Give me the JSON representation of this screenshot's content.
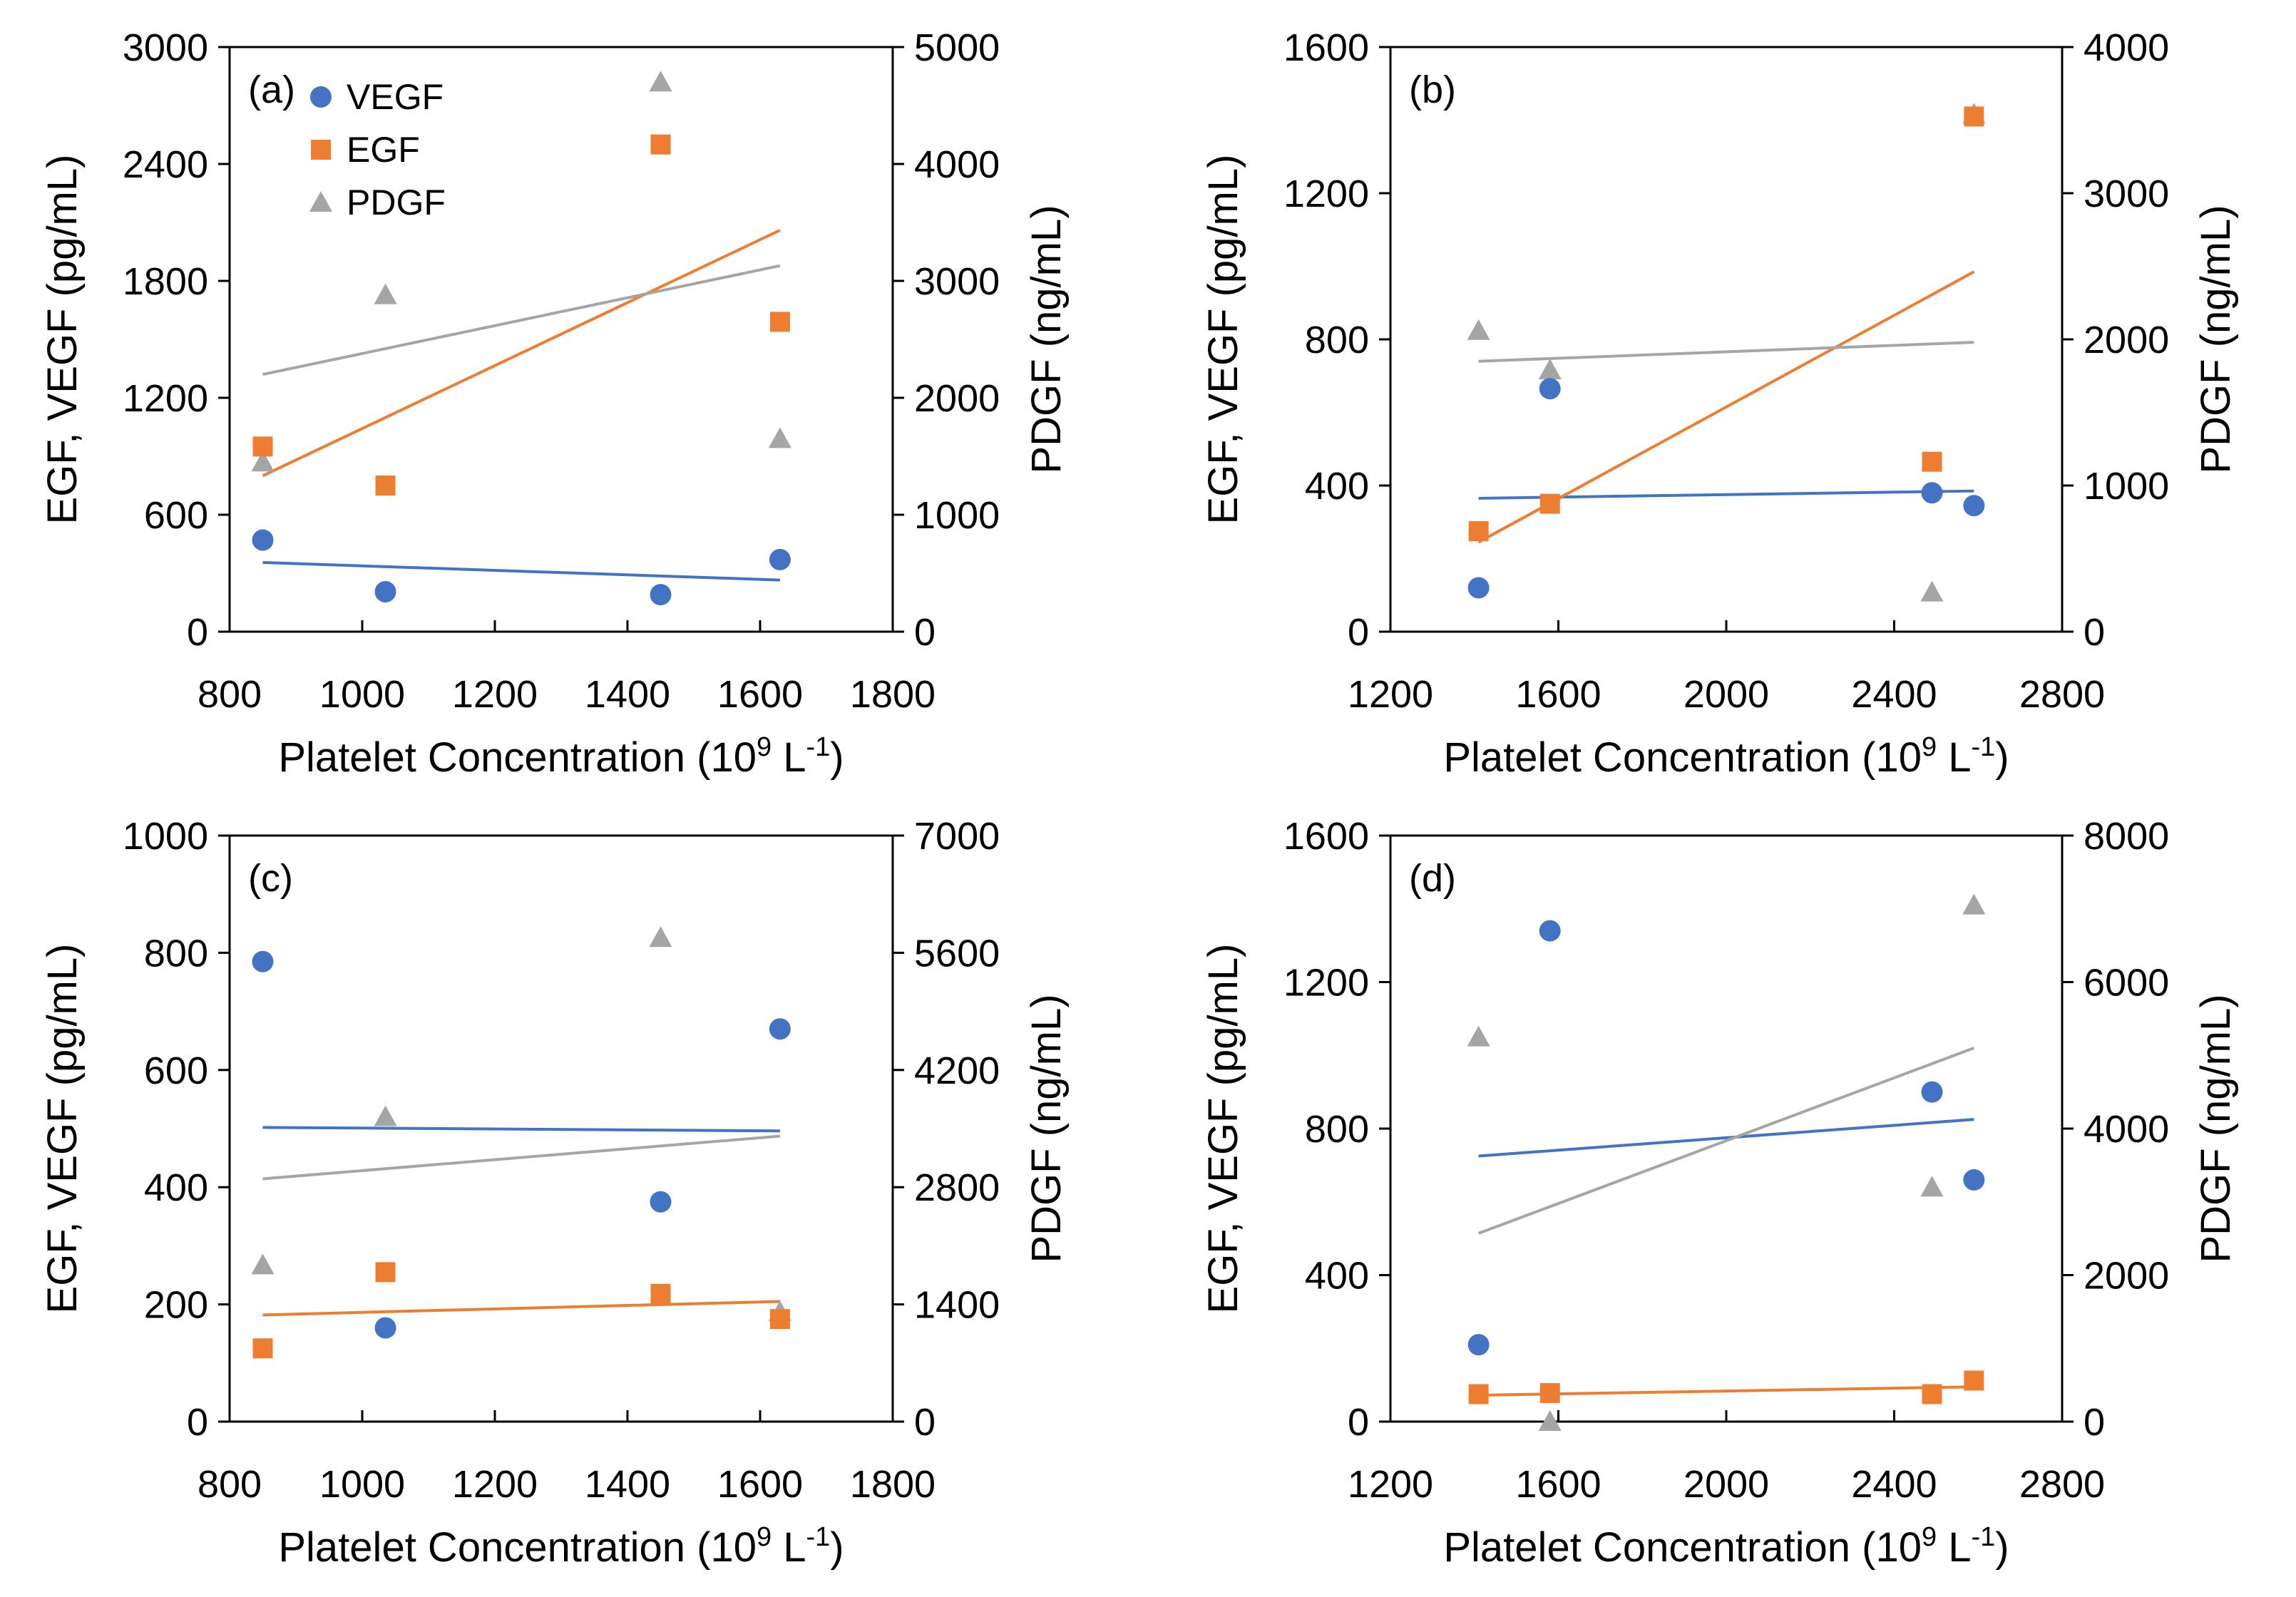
{
  "colors": {
    "VEGF": "#4472c4",
    "EGF": "#ed7d31",
    "PDGF": "#a5a5a5"
  },
  "chart_data": [
    {
      "type": "scatter",
      "panel_label": "(a)",
      "xlabel_main": "Platelet Concentration (10",
      "xlabel_sup": "9",
      "xlabel_mid": " L",
      "xlabel_sup2": "-1",
      "xlabel_end": ")",
      "ylabel": "EGF, VEGF (pg/mL)",
      "y2label": "PDGF (ng/mL)",
      "xlim": [
        800,
        1800
      ],
      "xticks": [
        800,
        1000,
        1200,
        1400,
        1600,
        1800
      ],
      "ylim": [
        0,
        3000
      ],
      "yticks": [
        0,
        600,
        1200,
        1800,
        2400,
        3000
      ],
      "y2lim": [
        0,
        5000
      ],
      "y2ticks": [
        0,
        1000,
        2000,
        3000,
        4000,
        5000
      ],
      "legend": [
        "VEGF",
        "EGF",
        "PDGF"
      ],
      "series": [
        {
          "name": "VEGF",
          "axis": "left",
          "marker": "circle",
          "x": [
            850,
            1035,
            1450,
            1630
          ],
          "y": [
            470,
            205,
            190,
            370
          ],
          "trend_y": [
            355,
            265
          ]
        },
        {
          "name": "EGF",
          "axis": "left",
          "marker": "square",
          "x": [
            850,
            1035,
            1450,
            1630
          ],
          "y": [
            950,
            750,
            2500,
            1590
          ],
          "trend_y": [
            800,
            2060
          ]
        },
        {
          "name": "PDGF",
          "axis": "right",
          "marker": "triangle",
          "x": [
            850,
            1035,
            1450,
            1630
          ],
          "y": [
            1450,
            2880,
            4700,
            1650
          ],
          "trend_y": [
            2200,
            3130
          ]
        }
      ]
    },
    {
      "type": "scatter",
      "panel_label": "(b)",
      "xlabel_main": "Platelet Concentration (10",
      "xlabel_sup": "9",
      "xlabel_mid": " L",
      "xlabel_sup2": "-1",
      "xlabel_end": ")",
      "ylabel": "EGF, VEGF (pg/mL)",
      "y2label": "PDGF (ng/mL)",
      "xlim": [
        1200,
        2800
      ],
      "xticks": [
        1200,
        1600,
        2000,
        2400,
        2800
      ],
      "ylim": [
        0,
        1600
      ],
      "yticks": [
        0,
        400,
        800,
        1200,
        1600
      ],
      "y2lim": [
        0,
        4000
      ],
      "y2ticks": [
        0,
        1000,
        2000,
        3000,
        4000
      ],
      "legend": [],
      "series": [
        {
          "name": "VEGF",
          "axis": "left",
          "marker": "circle",
          "x": [
            1410,
            1580,
            2490,
            2590
          ],
          "y": [
            120,
            665,
            380,
            345
          ],
          "trend_y": [
            365,
            385
          ]
        },
        {
          "name": "EGF",
          "axis": "left",
          "marker": "square",
          "x": [
            1410,
            1580,
            2490,
            2590
          ],
          "y": [
            275,
            350,
            465,
            1410
          ],
          "trend_y": [
            245,
            985
          ]
        },
        {
          "name": "PDGF",
          "axis": "right",
          "marker": "triangle",
          "x": [
            1410,
            1580,
            2490,
            2590
          ],
          "y": [
            2060,
            1790,
            270,
            3540
          ],
          "trend_y": [
            1850,
            1980
          ]
        }
      ]
    },
    {
      "type": "scatter",
      "panel_label": "(c)",
      "xlabel_main": "Platelet Concentration (10",
      "xlabel_sup": "9",
      "xlabel_mid": " L",
      "xlabel_sup2": "-1",
      "xlabel_end": ")",
      "ylabel": "EGF, VEGF (pg/mL)",
      "y2label": "PDGF (ng/mL)",
      "xlim": [
        800,
        1800
      ],
      "xticks": [
        800,
        1000,
        1200,
        1400,
        1600,
        1800
      ],
      "ylim": [
        0,
        1000
      ],
      "yticks": [
        0,
        200,
        400,
        600,
        800,
        1000
      ],
      "y2lim": [
        0,
        7000
      ],
      "y2ticks": [
        0,
        1400,
        2800,
        4200,
        5600,
        7000
      ],
      "legend": [],
      "series": [
        {
          "name": "VEGF",
          "axis": "left",
          "marker": "circle",
          "x": [
            850,
            1035,
            1450,
            1630
          ],
          "y": [
            785,
            160,
            375,
            670
          ],
          "trend_y": [
            502,
            496
          ]
        },
        {
          "name": "EGF",
          "axis": "left",
          "marker": "square",
          "x": [
            850,
            1035,
            1450,
            1630
          ],
          "y": [
            125,
            255,
            218,
            175
          ],
          "trend_y": [
            182,
            205
          ]
        },
        {
          "name": "PDGF",
          "axis": "right",
          "marker": "triangle",
          "x": [
            850,
            1035,
            1450,
            1630
          ],
          "y": [
            1870,
            3640,
            5780,
            1310
          ],
          "trend_y": [
            2900,
            3410
          ]
        }
      ]
    },
    {
      "type": "scatter",
      "panel_label": "(d)",
      "xlabel_main": "Platelet Concentration (10",
      "xlabel_sup": "9",
      "xlabel_mid": " L",
      "xlabel_sup2": "-1",
      "xlabel_end": ")",
      "ylabel": "EGF, VEGF (pg/mL)",
      "y2label": "PDGF (ng/mL)",
      "xlim": [
        1200,
        2800
      ],
      "xticks": [
        1200,
        1600,
        2000,
        2400,
        2800
      ],
      "ylim": [
        0,
        1600
      ],
      "yticks": [
        0,
        400,
        800,
        1200,
        1600
      ],
      "y2lim": [
        0,
        8000
      ],
      "y2ticks": [
        0,
        2000,
        4000,
        6000,
        8000
      ],
      "legend": [],
      "series": [
        {
          "name": "VEGF",
          "axis": "left",
          "marker": "circle",
          "x": [
            1410,
            1580,
            2490,
            2590
          ],
          "y": [
            210,
            1340,
            900,
            660
          ],
          "trend_y": [
            725,
            825
          ]
        },
        {
          "name": "EGF",
          "axis": "left",
          "marker": "square",
          "x": [
            1410,
            1580,
            2490,
            2590
          ],
          "y": [
            75,
            78,
            75,
            112
          ],
          "trend_y": [
            72,
            95
          ]
        },
        {
          "name": "PDGF",
          "axis": "right",
          "marker": "triangle",
          "x": [
            1410,
            1580,
            2490,
            2590
          ],
          "y": [
            5250,
            0,
            3200,
            7050
          ],
          "trend_y": [
            2570,
            5100
          ]
        }
      ]
    }
  ]
}
